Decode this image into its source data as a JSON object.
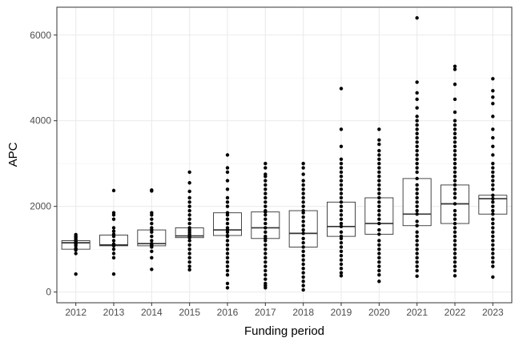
{
  "chart_data": {
    "type": "box",
    "xlabel": "Funding period",
    "ylabel": "APC",
    "ylim": [
      -250,
      6650
    ],
    "yticks": [
      0,
      2000,
      4000,
      6000
    ],
    "grid": true,
    "legend": "none",
    "categories": [
      "2012",
      "2013",
      "2014",
      "2015",
      "2016",
      "2017",
      "2018",
      "2019",
      "2020",
      "2021",
      "2022",
      "2023"
    ],
    "boxes": [
      {
        "category": "2012",
        "q1": 1000,
        "median": 1150,
        "q3": 1200
      },
      {
        "category": "2013",
        "q1": 1080,
        "median": 1100,
        "q3": 1330
      },
      {
        "category": "2014",
        "q1": 1080,
        "median": 1130,
        "q3": 1450
      },
      {
        "category": "2015",
        "q1": 1270,
        "median": 1310,
        "q3": 1500
      },
      {
        "category": "2016",
        "q1": 1320,
        "median": 1450,
        "q3": 1850
      },
      {
        "category": "2017",
        "q1": 1250,
        "median": 1500,
        "q3": 1870
      },
      {
        "category": "2018",
        "q1": 1050,
        "median": 1370,
        "q3": 1900
      },
      {
        "category": "2019",
        "q1": 1300,
        "median": 1530,
        "q3": 2100
      },
      {
        "category": "2020",
        "q1": 1350,
        "median": 1600,
        "q3": 2200
      },
      {
        "category": "2021",
        "q1": 1550,
        "median": 1820,
        "q3": 2650
      },
      {
        "category": "2022",
        "q1": 1600,
        "median": 2060,
        "q3": 2500
      },
      {
        "category": "2023",
        "q1": 1820,
        "median": 2180,
        "q3": 2260
      }
    ],
    "points": [
      {
        "category": "2012",
        "values": [
          420,
          900,
          980,
          1020,
          1080,
          1120,
          1150,
          1180,
          1200,
          1230,
          1270,
          1300,
          1340
        ]
      },
      {
        "category": "2013",
        "values": [
          420,
          800,
          900,
          1000,
          1080,
          1100,
          1120,
          1200,
          1300,
          1350,
          1420,
          1500,
          1700,
          1800,
          1850,
          2370
        ]
      },
      {
        "category": "2014",
        "values": [
          530,
          800,
          950,
          1050,
          1080,
          1100,
          1130,
          1200,
          1300,
          1400,
          1450,
          1500,
          1600,
          1700,
          1800,
          1850,
          2360,
          2380
        ]
      },
      {
        "category": "2015",
        "values": [
          520,
          600,
          700,
          800,
          900,
          1000,
          1100,
          1200,
          1270,
          1300,
          1310,
          1350,
          1400,
          1450,
          1500,
          1600,
          1700,
          1800,
          1900,
          2000,
          2100,
          2200,
          2350,
          2550,
          2800
        ]
      },
      {
        "category": "2016",
        "values": [
          100,
          200,
          400,
          500,
          600,
          700,
          800,
          900,
          1000,
          1100,
          1200,
          1300,
          1320,
          1400,
          1450,
          1500,
          1600,
          1700,
          1800,
          1850,
          2000,
          2100,
          2200,
          2400,
          2600,
          2800,
          2900,
          3200
        ]
      },
      {
        "category": "2017",
        "values": [
          100,
          150,
          200,
          300,
          400,
          500,
          600,
          700,
          800,
          900,
          1000,
          1100,
          1200,
          1250,
          1300,
          1400,
          1500,
          1600,
          1700,
          1800,
          1870,
          1900,
          2000,
          2100,
          2200,
          2300,
          2400,
          2500,
          2600,
          2700,
          2750,
          2900,
          3000
        ]
      },
      {
        "category": "2018",
        "values": [
          50,
          150,
          250,
          350,
          450,
          550,
          650,
          750,
          850,
          950,
          1050,
          1150,
          1250,
          1370,
          1450,
          1550,
          1650,
          1750,
          1850,
          1900,
          2000,
          2100,
          2200,
          2300,
          2400,
          2500,
          2600,
          2750,
          2900,
          3000
        ]
      },
      {
        "category": "2019",
        "values": [
          380,
          450,
          550,
          650,
          750,
          850,
          950,
          1050,
          1150,
          1250,
          1300,
          1400,
          1530,
          1600,
          1700,
          1800,
          1900,
          2000,
          2100,
          2200,
          2300,
          2400,
          2500,
          2600,
          2700,
          2800,
          2900,
          3000,
          3100,
          3400,
          3800,
          4750
        ]
      },
      {
        "category": "2020",
        "values": [
          250,
          400,
          500,
          600,
          700,
          800,
          900,
          1000,
          1100,
          1200,
          1350,
          1450,
          1600,
          1700,
          1800,
          1900,
          2000,
          2100,
          2200,
          2300,
          2400,
          2500,
          2600,
          2700,
          2800,
          2900,
          3000,
          3100,
          3200,
          3300,
          3450,
          3550,
          3800
        ]
      },
      {
        "category": "2021",
        "values": [
          370,
          500,
          600,
          700,
          800,
          900,
          1000,
          1100,
          1200,
          1300,
          1400,
          1550,
          1650,
          1820,
          1900,
          2000,
          2100,
          2200,
          2300,
          2400,
          2500,
          2650,
          2800,
          2900,
          3000,
          3100,
          3200,
          3300,
          3400,
          3500,
          3600,
          3700,
          3800,
          3900,
          4000,
          4100,
          4300,
          4500,
          4650,
          4900,
          6400
        ]
      },
      {
        "category": "2022",
        "values": [
          380,
          500,
          600,
          700,
          800,
          900,
          1000,
          1100,
          1200,
          1300,
          1400,
          1500,
          1600,
          1700,
          1800,
          1900,
          2060,
          2200,
          2300,
          2400,
          2500,
          2600,
          2700,
          2800,
          2900,
          3000,
          3100,
          3200,
          3300,
          3400,
          3500,
          3600,
          3700,
          3800,
          3900,
          4000,
          4200,
          4500,
          4850,
          5200,
          5270
        ]
      },
      {
        "category": "2023",
        "values": [
          350,
          600,
          700,
          800,
          900,
          1000,
          1100,
          1200,
          1300,
          1400,
          1500,
          1600,
          1700,
          1820,
          1900,
          2000,
          2100,
          2180,
          2260,
          2400,
          2500,
          2600,
          2700,
          2800,
          2900,
          3000,
          3200,
          3400,
          3600,
          3800,
          4100,
          4400,
          4550,
          4700,
          4980
        ]
      }
    ]
  }
}
